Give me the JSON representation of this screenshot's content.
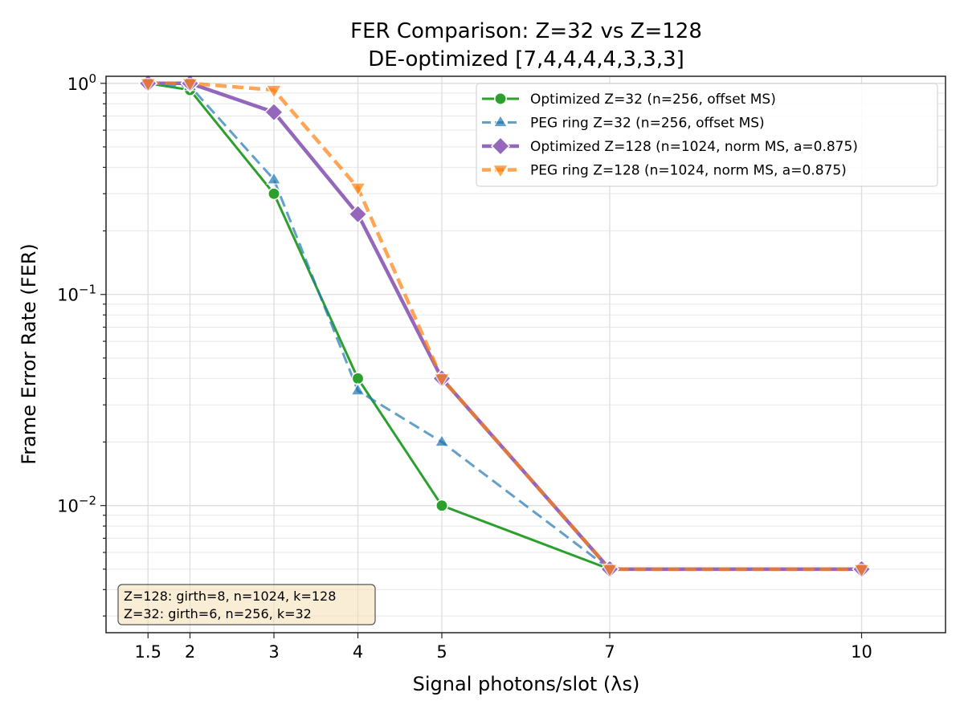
{
  "chart_data": {
    "type": "line",
    "title": "FER Comparison: Z=32 vs Z=128",
    "subtitle": "DE-optimized [7,4,4,4,4,3,3,3]",
    "xlabel": "Signal photons/slot (λs)",
    "ylabel": "Frame Error Rate (FER)",
    "xlim": [
      1,
      11
    ],
    "ylim": [
      0.0025,
      1.08
    ],
    "yscale": "log",
    "grid": true,
    "legend_position": "top-right",
    "x_ticks": [
      1.5,
      2,
      3,
      4,
      5,
      7,
      10
    ],
    "x_tick_labels": [
      "1.5",
      "2",
      "3",
      "4",
      "5",
      "7",
      "10"
    ],
    "y_ticks": [
      1,
      0.1,
      0.01
    ],
    "y_tick_labels": [
      {
        "base": "10",
        "exp": "0"
      },
      {
        "base": "10",
        "exp": "−1"
      },
      {
        "base": "10",
        "exp": "−2"
      }
    ],
    "x": [
      1.5,
      2,
      3,
      4,
      5,
      7,
      10
    ],
    "series": [
      {
        "name": "Optimized Z=32 (n=256, offset MS)",
        "values": [
          1.0,
          0.93,
          0.3,
          0.04,
          0.01,
          0.005,
          0.005
        ],
        "color": "#2ca02c",
        "marker": "circle",
        "linestyle": "solid"
      },
      {
        "name": "PEG ring Z=32 (n=256, offset MS)",
        "values": [
          1.0,
          0.97,
          0.35,
          0.035,
          0.02,
          0.005,
          0.005
        ],
        "color": "#1f77b4",
        "marker": "triangle-up",
        "linestyle": "dashed"
      },
      {
        "name": "Optimized Z=128 (n=1024, norm MS, a=0.875)",
        "values": [
          1.0,
          1.0,
          0.73,
          0.24,
          0.04,
          0.005,
          0.005
        ],
        "color": "#9467bd",
        "marker": "diamond",
        "linestyle": "solid"
      },
      {
        "name": "PEG ring Z=128 (n=1024, norm MS, a=0.875)",
        "values": [
          1.0,
          1.0,
          0.93,
          0.32,
          0.04,
          0.005,
          0.005
        ],
        "color": "#ff7f0e",
        "marker": "triangle-down",
        "linestyle": "dashed"
      }
    ],
    "annotation": [
      "Z=128: girth=8, n=1024, k=128",
      "Z=32: girth=6, n=256, k=32"
    ]
  }
}
